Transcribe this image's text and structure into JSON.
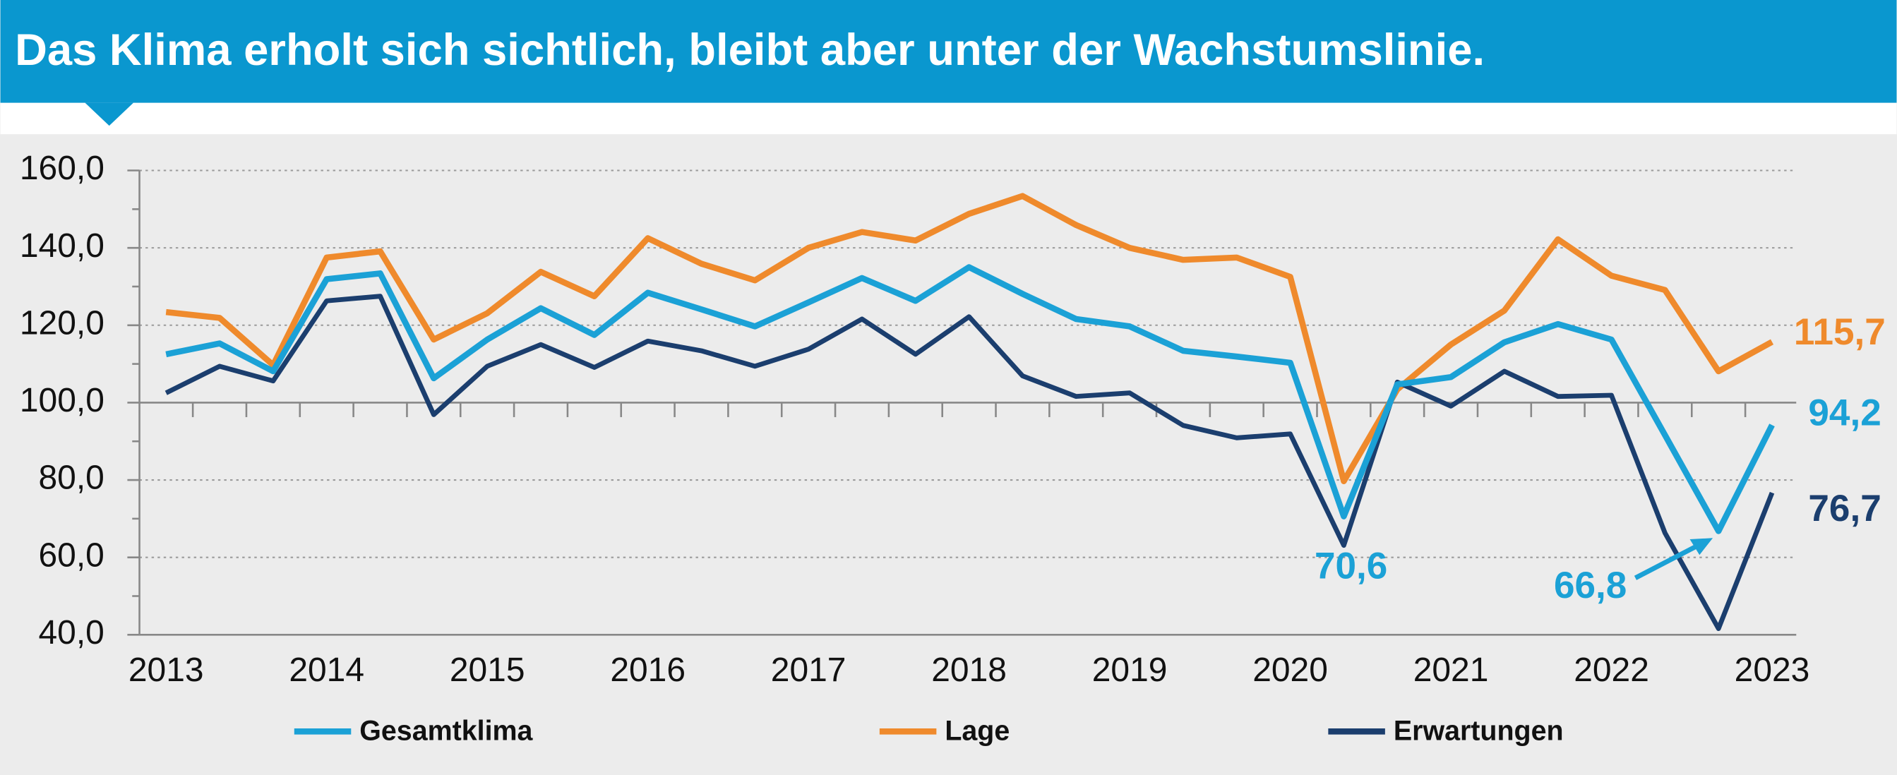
{
  "chart_data": {
    "type": "line",
    "title": "Das Klima erholt sich sichtlich, bleibt aber unter der Wachstumslinie.",
    "categories": [
      "2013",
      null,
      null,
      "2014",
      null,
      null,
      "2015",
      null,
      null,
      "2016",
      null,
      null,
      "2017",
      null,
      null,
      "2018",
      null,
      null,
      "2019",
      null,
      null,
      "2020",
      null,
      null,
      "2021",
      null,
      null,
      "2022",
      null,
      null,
      "2023"
    ],
    "series": [
      {
        "name": "Gesamtklima",
        "color": "#1ba1d6",
        "values": [
          112.5,
          115.3,
          108.1,
          131.9,
          133.4,
          106.3,
          116.3,
          124.4,
          117.5,
          128.4,
          124.1,
          119.7,
          125.9,
          132.2,
          126.3,
          135.0,
          128.1,
          121.6,
          119.7,
          113.4,
          111.9,
          110.3,
          70.6,
          104.7,
          106.6,
          115.6,
          120.3,
          116.3,
          91.6,
          66.8,
          94.2
        ],
        "value_labels": [
          null,
          null,
          null,
          null,
          null,
          null,
          null,
          null,
          null,
          null,
          null,
          null,
          null,
          null,
          null,
          null,
          null,
          null,
          null,
          null,
          null,
          null,
          "70,6",
          null,
          null,
          null,
          null,
          null,
          null,
          "66,8",
          "94,2"
        ]
      },
      {
        "name": "Lage",
        "color": "#ef8a2c",
        "values": [
          123.4,
          121.9,
          109.7,
          137.5,
          139.1,
          116.3,
          123.1,
          133.8,
          127.5,
          142.5,
          135.9,
          131.6,
          140.0,
          144.1,
          141.9,
          148.8,
          153.4,
          145.9,
          140.0,
          136.9,
          137.5,
          132.5,
          79.7,
          103.4,
          115.0,
          123.8,
          142.2,
          132.8,
          129.1,
          108.1,
          115.7
        ],
        "value_labels": [
          null,
          null,
          null,
          null,
          null,
          null,
          null,
          null,
          null,
          null,
          null,
          null,
          null,
          null,
          null,
          null,
          null,
          null,
          null,
          null,
          null,
          null,
          null,
          null,
          null,
          null,
          null,
          null,
          null,
          null,
          "115,7"
        ]
      },
      {
        "name": "Erwartungen",
        "color": "#1b3e6e",
        "values": [
          102.5,
          109.4,
          105.6,
          126.3,
          127.5,
          96.9,
          109.4,
          115.0,
          109.1,
          115.9,
          113.4,
          109.4,
          113.8,
          121.6,
          112.5,
          122.2,
          106.9,
          101.6,
          102.5,
          94.1,
          90.9,
          91.9,
          63.1,
          105.3,
          99.1,
          108.1,
          101.6,
          101.9,
          66.3,
          41.6,
          76.7
        ],
        "value_labels": [
          null,
          null,
          null,
          null,
          null,
          null,
          null,
          null,
          null,
          null,
          null,
          null,
          null,
          null,
          null,
          null,
          null,
          null,
          null,
          null,
          null,
          null,
          null,
          null,
          null,
          null,
          null,
          null,
          null,
          null,
          "76,7"
        ]
      }
    ],
    "ylim": [
      40,
      160
    ],
    "yticks": [
      {
        "value": 40,
        "label": "40,0"
      },
      {
        "value": 60,
        "label": "60,0"
      },
      {
        "value": 80,
        "label": "80,0"
      },
      {
        "value": 100,
        "label": "100,0"
      },
      {
        "value": 120,
        "label": "120,0"
      },
      {
        "value": 140,
        "label": "140,0"
      },
      {
        "value": 160,
        "label": "160,0"
      }
    ],
    "xaxis_crosses": 100,
    "grid": true,
    "legend": "bottom"
  }
}
